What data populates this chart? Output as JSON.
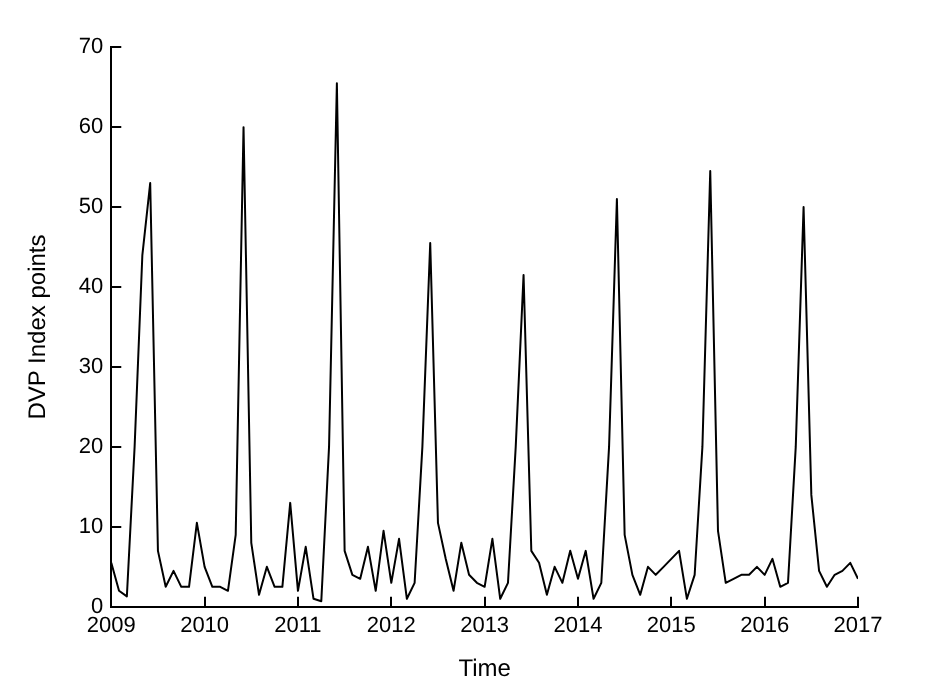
{
  "chart_data": {
    "type": "line",
    "xlabel": "Time",
    "ylabel": "DVP Index points",
    "x": [
      2009,
      2009.083,
      2009.167,
      2009.25,
      2009.333,
      2009.417,
      2009.5,
      2009.583,
      2009.667,
      2009.75,
      2009.833,
      2009.917,
      2010,
      2010.083,
      2010.167,
      2010.25,
      2010.333,
      2010.417,
      2010.5,
      2010.583,
      2010.667,
      2010.75,
      2010.833,
      2010.917,
      2011,
      2011.083,
      2011.167,
      2011.25,
      2011.333,
      2011.417,
      2011.5,
      2011.583,
      2011.667,
      2011.75,
      2011.833,
      2011.917,
      2012,
      2012.083,
      2012.167,
      2012.25,
      2012.333,
      2012.417,
      2012.5,
      2012.583,
      2012.667,
      2012.75,
      2012.833,
      2012.917,
      2013,
      2013.083,
      2013.167,
      2013.25,
      2013.333,
      2013.417,
      2013.5,
      2013.583,
      2013.667,
      2013.75,
      2013.833,
      2013.917,
      2014,
      2014.083,
      2014.167,
      2014.25,
      2014.333,
      2014.417,
      2014.5,
      2014.583,
      2014.667,
      2014.75,
      2014.833,
      2014.917,
      2015,
      2015.083,
      2015.167,
      2015.25,
      2015.333,
      2015.417,
      2015.5,
      2015.583,
      2015.667,
      2015.75,
      2015.833,
      2015.917,
      2016,
      2016.083,
      2016.167,
      2016.25,
      2016.333,
      2016.417,
      2016.5,
      2016.583,
      2016.667,
      2016.75,
      2016.833,
      2016.917,
      2017
    ],
    "series": [
      {
        "color": "#000000",
        "values": [
          5.5,
          2,
          1.3,
          20,
          44,
          53,
          7,
          2.5,
          4.5,
          2.5,
          2.5,
          10.5,
          5,
          2.5,
          2.5,
          2,
          9,
          60,
          8,
          1.5,
          5,
          2.5,
          2.5,
          13,
          2,
          7.5,
          1,
          0.7,
          20,
          65.5,
          7,
          4,
          3.5,
          7.5,
          2,
          9.5,
          3,
          8.5,
          1,
          3,
          20,
          45.5,
          10.5,
          6,
          2,
          8,
          4,
          3,
          2.5,
          8.5,
          1,
          3,
          20,
          41.5,
          7,
          5.5,
          1.5,
          5,
          3,
          7,
          3.5,
          7,
          1,
          3,
          20,
          51,
          9,
          4,
          1.5,
          5,
          4,
          5,
          6,
          7,
          1,
          4,
          20,
          54.5,
          9.5,
          3,
          3.5,
          4,
          4,
          5,
          4,
          6,
          2.5,
          3,
          20,
          50,
          14,
          4.5,
          2.5,
          4,
          4.5,
          5.5,
          3.5
        ]
      }
    ],
    "xlim": [
      2009,
      2017
    ],
    "xticks": [
      2009,
      2010,
      2011,
      2012,
      2013,
      2014,
      2015,
      2016,
      2017
    ],
    "ylim": [
      0,
      70
    ],
    "yticks": [
      0,
      10,
      20,
      30,
      40,
      50,
      60,
      70
    ],
    "grid": false,
    "legend": false,
    "marker": "none",
    "line_style": "solid"
  }
}
